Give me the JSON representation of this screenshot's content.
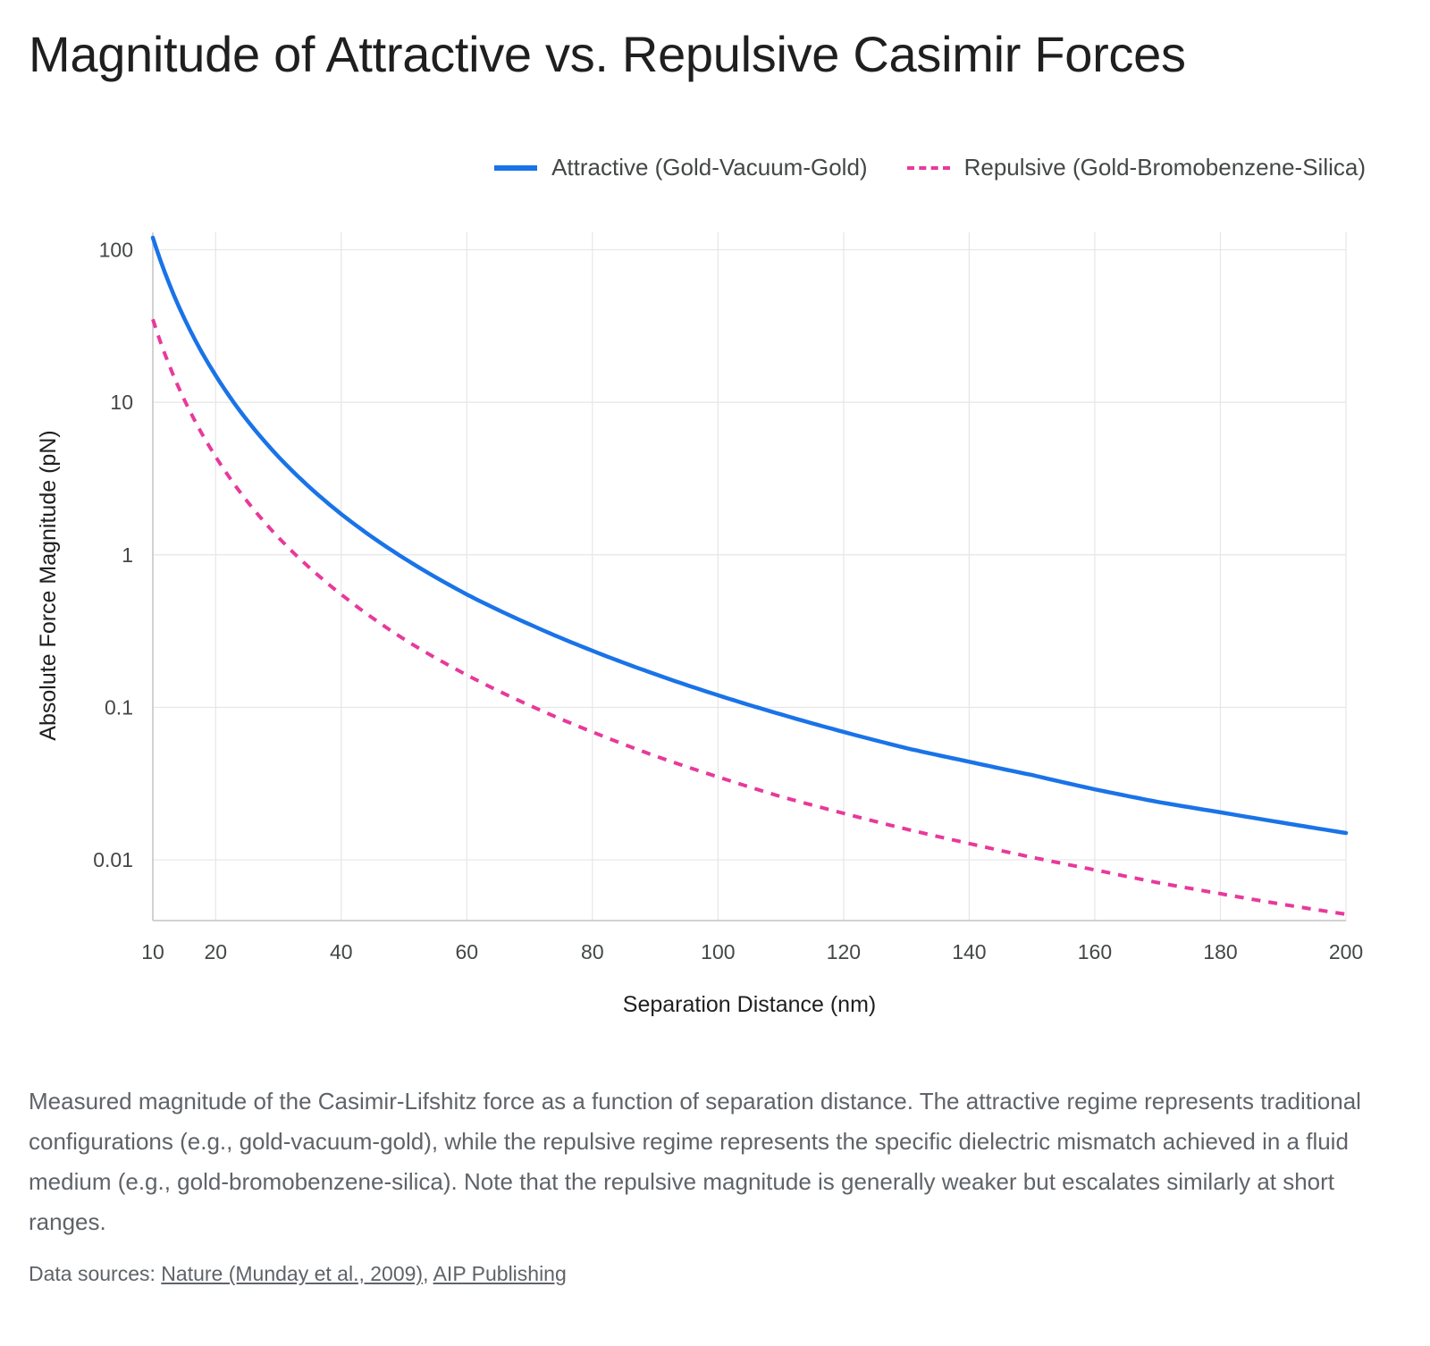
{
  "chart_data": {
    "type": "line",
    "title": "Magnitude of Attractive vs. Repulsive Casimir Forces",
    "xlabel": "Separation Distance (nm)",
    "ylabel": "Absolute Force Magnitude (pN)",
    "xlim": [
      10,
      200
    ],
    "ylim": [
      0.004,
      130
    ],
    "yscale": "log",
    "grid": true,
    "legend_position": "top-right",
    "x_ticks": [
      "10",
      "20",
      "40",
      "60",
      "80",
      "100",
      "120",
      "140",
      "160",
      "180",
      "200"
    ],
    "y_ticks": [
      "100",
      "10",
      "1",
      "0.1",
      "0.01"
    ],
    "series": [
      {
        "name": "Attractive (Gold-Vacuum-Gold)",
        "color": "#1a73e8",
        "style": "solid",
        "x": [
          10,
          20,
          30,
          40,
          50,
          60,
          70,
          80,
          90,
          100,
          110,
          120,
          130,
          140,
          150,
          160,
          170,
          180,
          190,
          200
        ],
        "values": [
          120,
          15,
          4.4,
          1.85,
          0.95,
          0.55,
          0.35,
          0.235,
          0.165,
          0.12,
          0.09,
          0.069,
          0.054,
          0.044,
          0.036,
          0.029,
          0.024,
          0.0205,
          0.0175,
          0.015
        ]
      },
      {
        "name": "Repulsive (Gold-Bromobenzene-Silica)",
        "color": "#e8399b",
        "style": "dashed",
        "x": [
          10,
          20,
          30,
          40,
          50,
          60,
          70,
          80,
          90,
          100,
          110,
          120,
          130,
          140,
          150,
          160,
          170,
          180,
          190,
          200
        ],
        "values": [
          35,
          4.4,
          1.3,
          0.55,
          0.28,
          0.163,
          0.103,
          0.069,
          0.048,
          0.035,
          0.026,
          0.0202,
          0.0159,
          0.0128,
          0.0104,
          0.0086,
          0.0071,
          0.006,
          0.0051,
          0.0044
        ]
      }
    ]
  },
  "caption": "Measured magnitude of the Casimir-Lifshitz force as a function of separation distance. The attractive regime represents traditional configurations (e.g., gold-vacuum-gold), while the repulsive regime represents the specific dielectric mismatch achieved in a fluid medium (e.g., gold-bromobenzene-silica). Note that the repulsive magnitude is generally weaker but escalates similarly at short ranges.",
  "sources": {
    "prefix": "Data sources: ",
    "links": [
      "Nature (Munday et al., 2009)",
      "AIP Publishing"
    ],
    "separator": ", "
  }
}
